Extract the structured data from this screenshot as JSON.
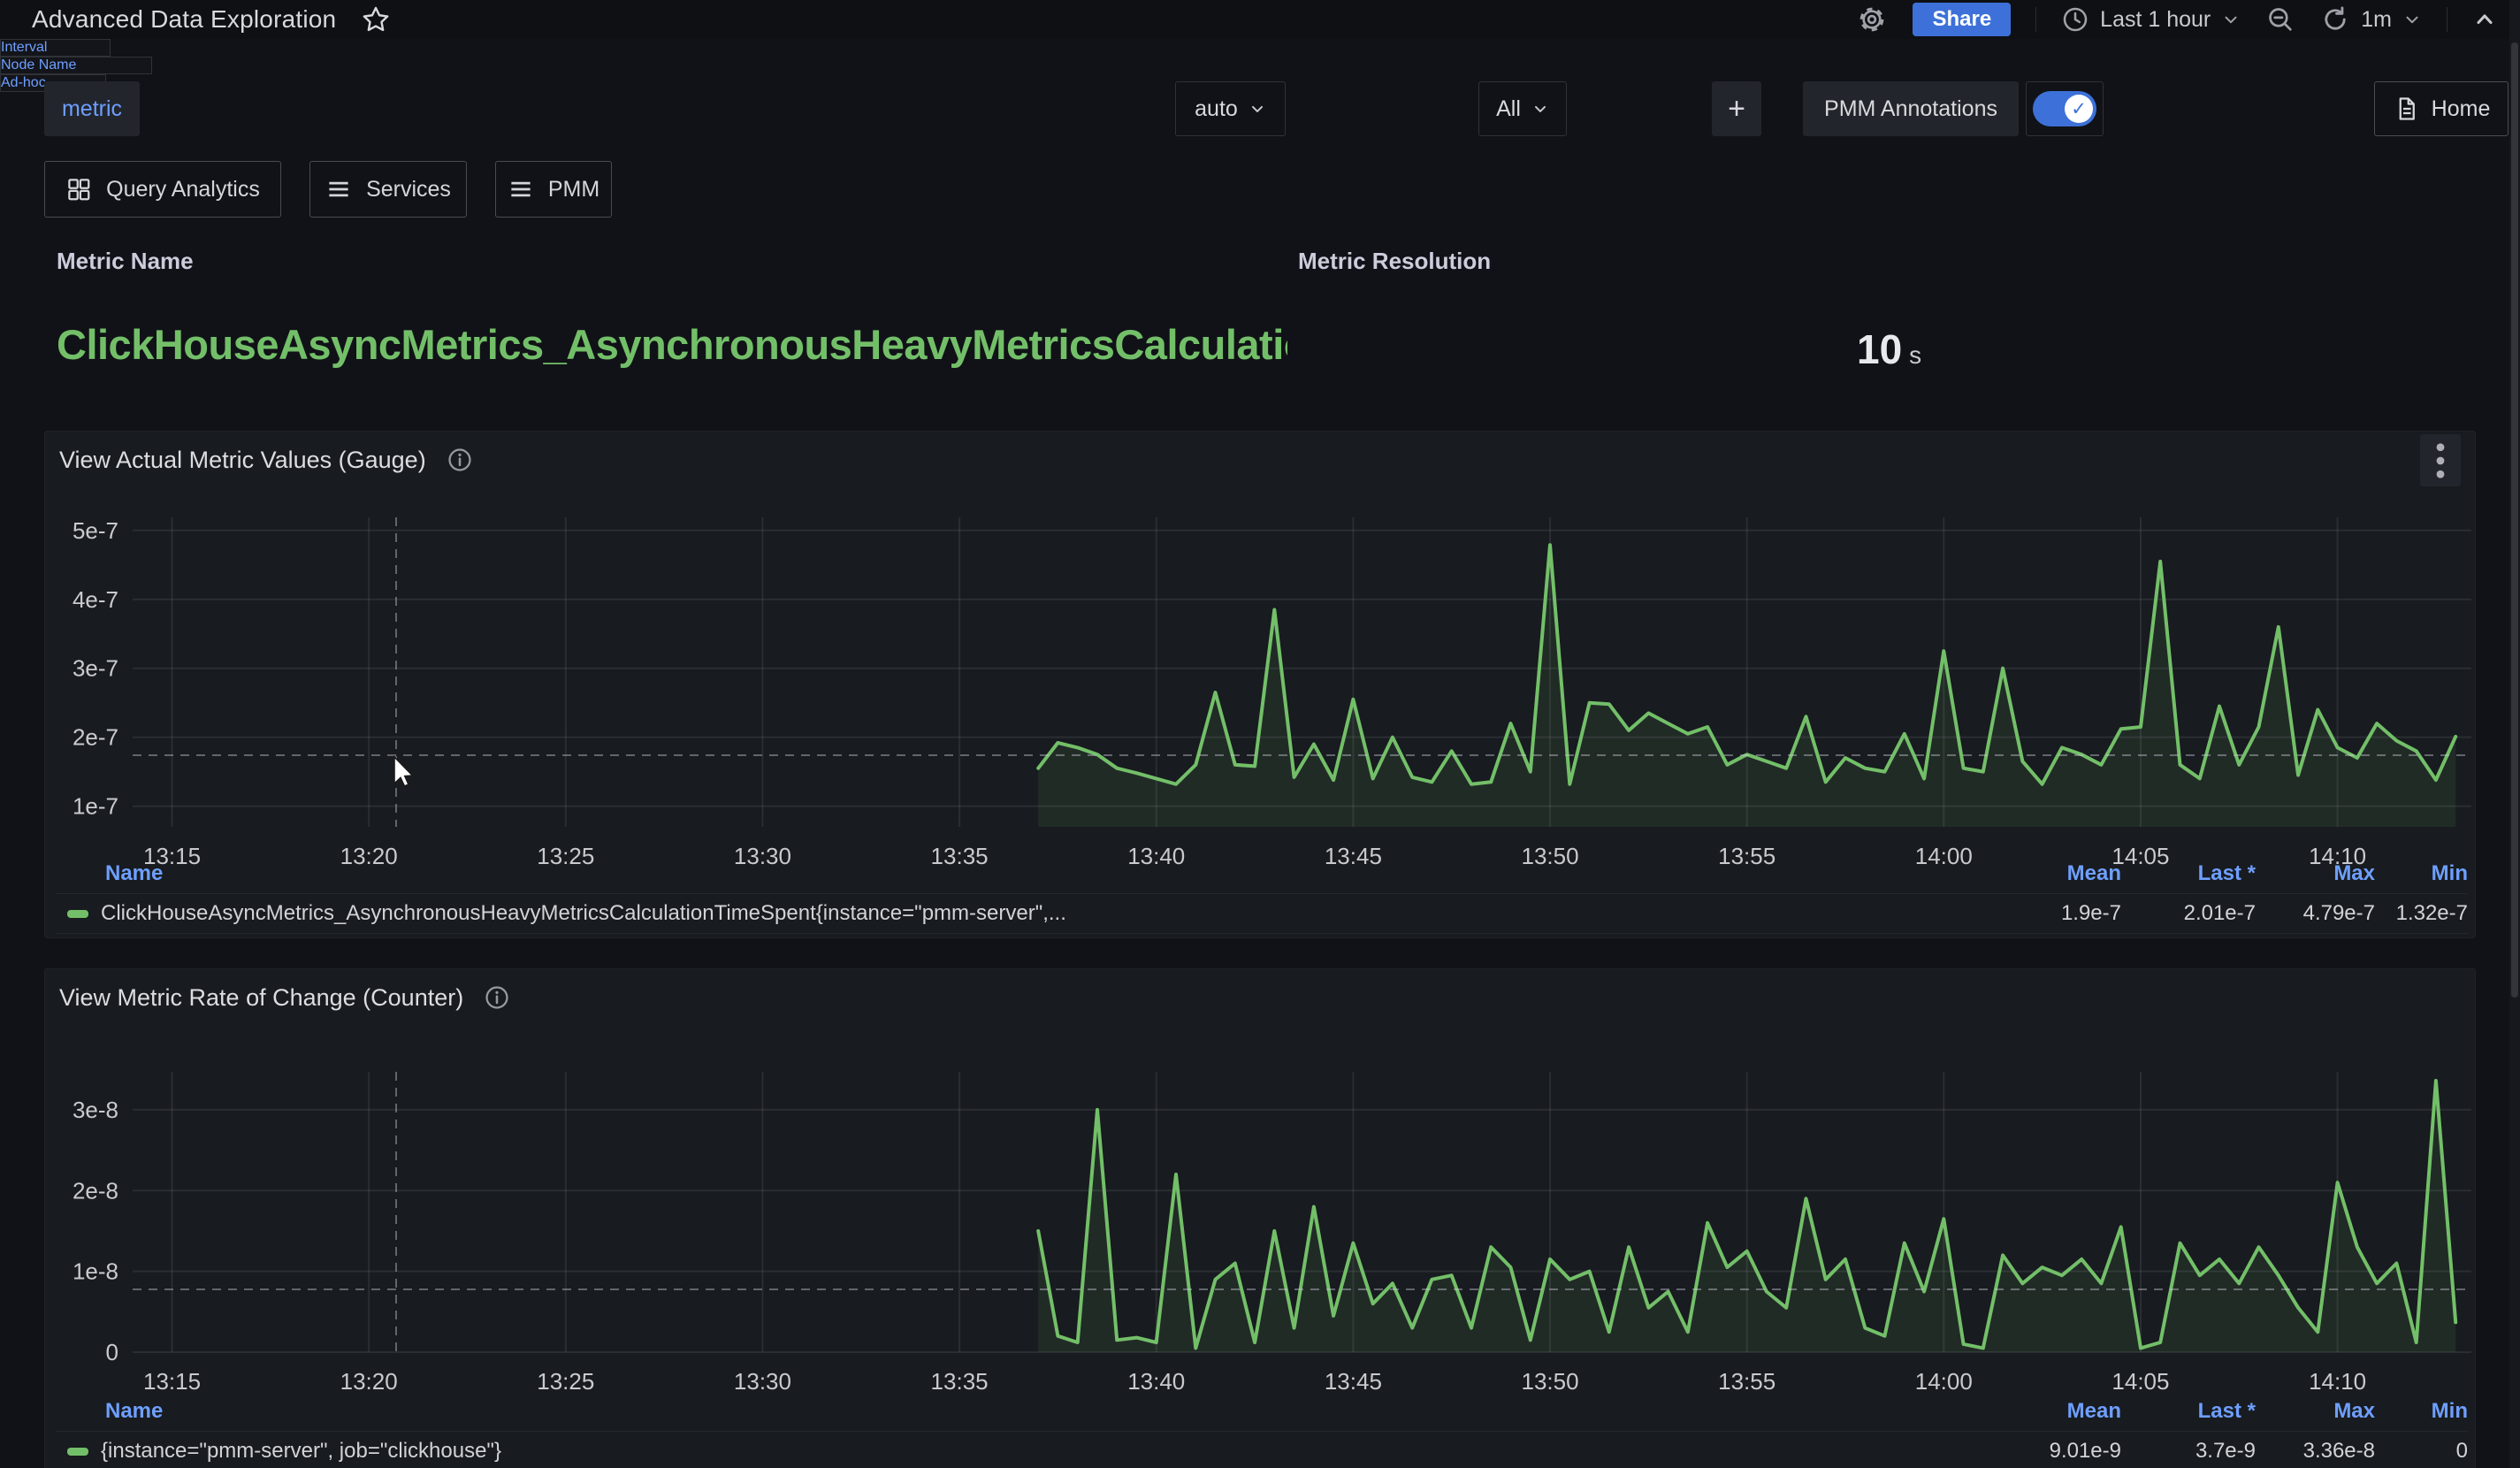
{
  "topbar": {
    "title": "Advanced Data Exploration",
    "share_label": "Share",
    "time_range_label": "Last 1 hour",
    "refresh_interval_label": "1m"
  },
  "filters": {
    "metric": {
      "label": "metric",
      "value": "ClickHouseAsyncMetrics_AsynchronousHeavyMetricsCalculationTi..."
    },
    "interval": {
      "label": "Interval",
      "value": "auto"
    },
    "node_name": {
      "label": "Node Name",
      "value": "All"
    },
    "adhoc": {
      "label": "Ad-hoc",
      "add_label": "+"
    },
    "annotations": {
      "label": "PMM Annotations",
      "enabled": true
    },
    "home_label": "Home"
  },
  "nav": {
    "query_analytics_label": "Query Analytics",
    "services_label": "Services",
    "pmm_label": "PMM"
  },
  "summary": {
    "metric_name_label": "Metric Name",
    "metric_name_value": "ClickHouseAsyncMetrics_AsynchronousHeavyMetricsCalculationTimeSpent",
    "resolution_label": "Metric Resolution",
    "resolution_value": "10",
    "resolution_unit": "s"
  },
  "colors": {
    "accent_blue": "#3D71D9",
    "link_blue": "#6E9FFF",
    "series_green": "#73BF69",
    "panel_bg": "#181B1F",
    "page_bg": "#111217"
  },
  "chart_data": [
    {
      "type": "line",
      "panel_title": "View Actual Metric Values (Gauge)",
      "unit_scale": "1e-7",
      "ylim": [
        0.7,
        5.19
      ],
      "y_ticks": [
        {
          "v": 1,
          "label": "1e-7"
        },
        {
          "v": 2,
          "label": "2e-7"
        },
        {
          "v": 3,
          "label": "3e-7"
        },
        {
          "v": 4,
          "label": "4e-7"
        },
        {
          "v": 5,
          "label": "5e-7"
        }
      ],
      "x_axis": {
        "range_min": [
          14.0,
          73.4
        ],
        "ticks": [
          {
            "m": 15,
            "label": "13:15"
          },
          {
            "m": 20,
            "label": "13:20"
          },
          {
            "m": 25,
            "label": "13:25"
          },
          {
            "m": 30,
            "label": "13:30"
          },
          {
            "m": 35,
            "label": "13:35"
          },
          {
            "m": 40,
            "label": "13:40"
          },
          {
            "m": 45,
            "label": "13:45"
          },
          {
            "m": 50,
            "label": "13:50"
          },
          {
            "m": 55,
            "label": "13:55"
          },
          {
            "m": 60,
            "label": "14:00"
          },
          {
            "m": 65,
            "label": "14:05"
          },
          {
            "m": 70,
            "label": "14:10"
          }
        ]
      },
      "series": [
        {
          "name": "ClickHouseAsyncMetrics_AsynchronousHeavyMetricsCalculationTimeSpent{instance=\"pmm-server\",...",
          "color": "#73BF69",
          "start_min": 37.0,
          "step_min": 0.5,
          "values": [
            1.55,
            1.92,
            1.85,
            1.75,
            1.55,
            1.48,
            1.4,
            1.32,
            1.6,
            2.65,
            1.6,
            1.58,
            3.85,
            1.42,
            1.9,
            1.38,
            2.55,
            1.4,
            2.0,
            1.42,
            1.35,
            1.8,
            1.32,
            1.35,
            2.2,
            1.5,
            4.79,
            1.32,
            2.5,
            2.48,
            2.1,
            2.35,
            2.2,
            2.05,
            2.15,
            1.6,
            1.75,
            1.65,
            1.55,
            2.3,
            1.35,
            1.7,
            1.55,
            1.5,
            2.05,
            1.4,
            3.25,
            1.55,
            1.5,
            3.0,
            1.65,
            1.32,
            1.85,
            1.75,
            1.6,
            2.12,
            2.15,
            4.55,
            1.6,
            1.4,
            2.45,
            1.6,
            2.15,
            3.6,
            1.45,
            2.4,
            1.85,
            1.7,
            2.2,
            1.95,
            1.8,
            1.38,
            2.01
          ]
        }
      ],
      "legend": {
        "columns": [
          "Name",
          "Mean",
          "Last *",
          "Max",
          "Min"
        ],
        "rows": [
          {
            "name": "ClickHouseAsyncMetrics_AsynchronousHeavyMetricsCalculationTimeSpent{instance=\"pmm-server\",...",
            "mean": "1.9e-7",
            "last": "2.01e-7",
            "max": "4.79e-7",
            "min": "1.32e-7"
          }
        ]
      }
    },
    {
      "type": "line",
      "panel_title": "View Metric Rate of Change (Counter)",
      "unit_scale": "1e-8",
      "ylim": [
        0,
        3.47
      ],
      "y_ticks": [
        {
          "v": 0,
          "label": "0"
        },
        {
          "v": 1,
          "label": "1e-8"
        },
        {
          "v": 2,
          "label": "2e-8"
        },
        {
          "v": 3,
          "label": "3e-8"
        }
      ],
      "x_axis": {
        "range_min": [
          14.0,
          73.4
        ],
        "ticks": [
          {
            "m": 15,
            "label": "13:15"
          },
          {
            "m": 20,
            "label": "13:20"
          },
          {
            "m": 25,
            "label": "13:25"
          },
          {
            "m": 30,
            "label": "13:30"
          },
          {
            "m": 35,
            "label": "13:35"
          },
          {
            "m": 40,
            "label": "13:40"
          },
          {
            "m": 45,
            "label": "13:45"
          },
          {
            "m": 50,
            "label": "13:50"
          },
          {
            "m": 55,
            "label": "13:55"
          },
          {
            "m": 60,
            "label": "14:00"
          },
          {
            "m": 65,
            "label": "14:05"
          },
          {
            "m": 70,
            "label": "14:10"
          }
        ]
      },
      "series": [
        {
          "name": "{instance=\"pmm-server\", job=\"clickhouse\"}",
          "color": "#73BF69",
          "start_min": 37.0,
          "step_min": 0.5,
          "values": [
            1.5,
            0.2,
            0.12,
            3.0,
            0.15,
            0.18,
            0.12,
            2.2,
            0.05,
            0.9,
            1.1,
            0.12,
            1.5,
            0.3,
            1.8,
            0.45,
            1.35,
            0.6,
            0.85,
            0.3,
            0.9,
            0.95,
            0.3,
            1.3,
            1.05,
            0.15,
            1.15,
            0.9,
            1.0,
            0.25,
            1.3,
            0.55,
            0.75,
            0.25,
            1.6,
            1.05,
            1.25,
            0.75,
            0.55,
            1.9,
            0.9,
            1.15,
            0.3,
            0.2,
            1.35,
            0.75,
            1.65,
            0.1,
            0.05,
            1.2,
            0.85,
            1.05,
            0.95,
            1.15,
            0.85,
            1.55,
            0.05,
            0.12,
            1.35,
            0.95,
            1.15,
            0.85,
            1.3,
            0.95,
            0.55,
            0.25,
            2.1,
            1.3,
            0.85,
            1.1,
            0.12,
            3.36,
            0.37
          ]
        }
      ],
      "legend": {
        "columns": [
          "Name",
          "Mean",
          "Last *",
          "Max",
          "Min"
        ],
        "rows": [
          {
            "name": "{instance=\"pmm-server\", job=\"clickhouse\"}",
            "mean": "9.01e-9",
            "last": "3.7e-9",
            "max": "3.36e-8",
            "min": "0"
          }
        ]
      }
    }
  ]
}
